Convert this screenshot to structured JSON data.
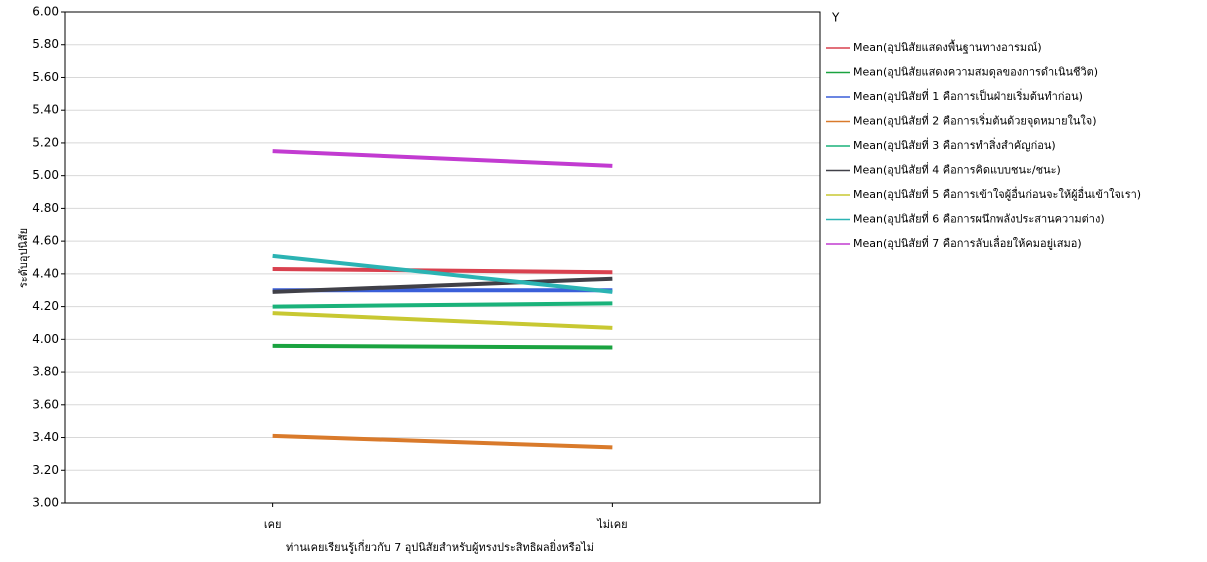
{
  "chart_data": {
    "type": "line",
    "y_label": "ระดับอุปนิสัย",
    "x_label": "ท่านเคยเรียนรู้เกี่ยวกับ 7 อุปนิสัยสำหรับผู้ทรงประสิทธิผลยิ่งหรือไม่",
    "legend_title": "Y",
    "categories": [
      "เคย",
      "ไม่เคย"
    ],
    "ylim": [
      3,
      6
    ],
    "yticks": [
      {
        "value": 3,
        "label": "3.00"
      },
      {
        "value": 3.2,
        "label": "3.20"
      },
      {
        "value": 3.4,
        "label": "3.40"
      },
      {
        "value": 3.6,
        "label": "3.60"
      },
      {
        "value": 3.8,
        "label": "3.80"
      },
      {
        "value": 4,
        "label": "4.00"
      },
      {
        "value": 4.2,
        "label": "4.20"
      },
      {
        "value": 4.4,
        "label": "4.40"
      },
      {
        "value": 4.6,
        "label": "4.60"
      },
      {
        "value": 4.8,
        "label": "4.80"
      },
      {
        "value": 5,
        "label": "5.00"
      },
      {
        "value": 5.2,
        "label": "5.20"
      },
      {
        "value": 5.4,
        "label": "5.40"
      },
      {
        "value": 5.6,
        "label": "5.60"
      },
      {
        "value": 5.8,
        "label": "5.80"
      },
      {
        "value": 6,
        "label": "6.00"
      }
    ],
    "grid": true,
    "series": [
      {
        "name": "Mean(อุปนิสัยแสดงพื้นฐานทางอารมณ์)",
        "color": "#d9414f",
        "values": [
          4.43,
          4.41
        ]
      },
      {
        "name": "Mean(อุปนิสัยแสดงความสมดุลของการดำเนินชีวิต)",
        "color": "#1aa340",
        "values": [
          3.96,
          3.95
        ]
      },
      {
        "name": "Mean(อุปนิสัยที่ 1 คือการเป็นฝ่ายเริ่มต้นทำก่อน)",
        "color": "#3a5fd9",
        "values": [
          4.3,
          4.3
        ]
      },
      {
        "name": "Mean(อุปนิสัยที่ 2 คือการเริ่มต้นด้วยจุดหมายในใจ)",
        "color": "#d97a2b",
        "values": [
          3.41,
          3.34
        ]
      },
      {
        "name": "Mean(อุปนิสัยที่ 3 คือการทำสิ่งสำคัญก่อน)",
        "color": "#1ab27a",
        "values": [
          4.2,
          4.22
        ]
      },
      {
        "name": "Mean(อุปนิสัยที่ 4 คือการคิดแบบชนะ/ชนะ)",
        "color": "#404048",
        "values": [
          4.29,
          4.37
        ]
      },
      {
        "name": "Mean(อุปนิสัยที่ 5 คือการเข้าใจผู้อื่นก่อนจะให้ผู้อื่นเข้าใจเรา)",
        "color": "#c8c832",
        "values": [
          4.16,
          4.07
        ]
      },
      {
        "name": "Mean(อุปนิสัยที่ 6 คือการผนึกพลังประสานความต่าง)",
        "color": "#2bb3b3",
        "values": [
          4.51,
          4.29
        ]
      },
      {
        "name": "Mean(อุปนิสัยที่ 7 คือการลับเลื่อยให้คมอยู่เสมอ)",
        "color": "#c23bd1",
        "values": [
          5.15,
          5.06
        ]
      }
    ]
  }
}
